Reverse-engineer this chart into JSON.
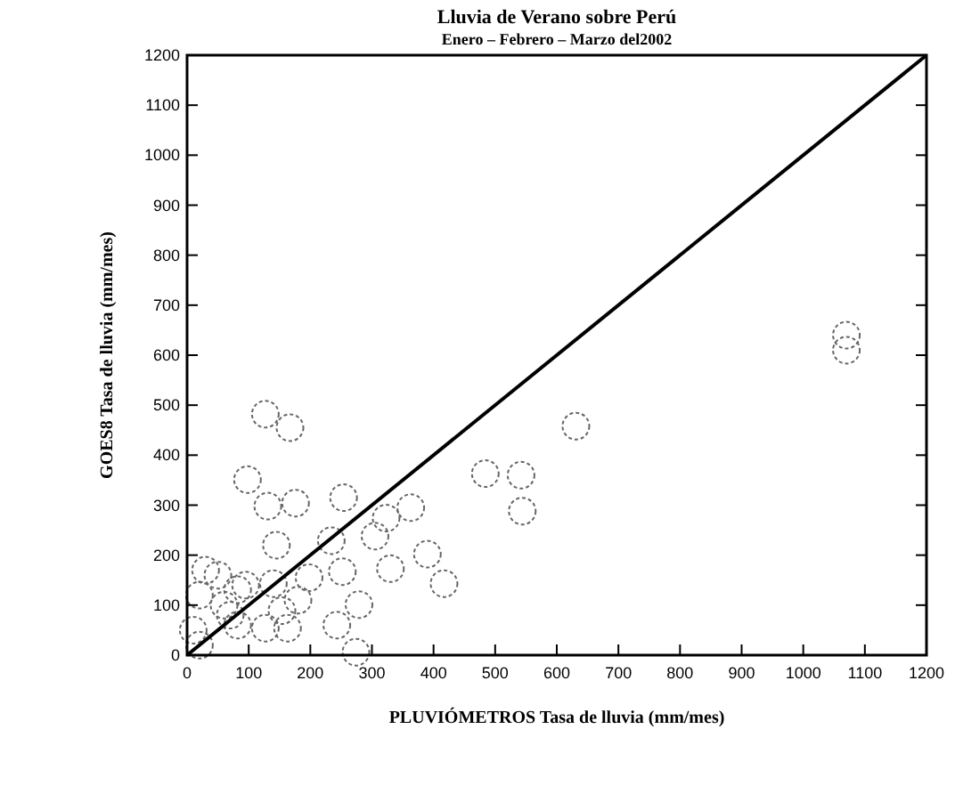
{
  "chart_data": {
    "type": "scatter",
    "title": "Lluvia de Verano sobre Perú",
    "subtitle": "Enero – Febrero – Marzo del2002",
    "xlabel": "PLUVIÓMETROS Tasa de lluvia (mm/mes)",
    "ylabel": "GOES8 Tasa de lluvia (mm/mes)",
    "xlim": [
      0,
      1200
    ],
    "ylim": [
      0,
      1200
    ],
    "xticks": [
      0,
      100,
      200,
      300,
      400,
      500,
      600,
      700,
      800,
      900,
      1000,
      1100,
      1200
    ],
    "yticks": [
      0,
      100,
      200,
      300,
      400,
      500,
      600,
      700,
      800,
      900,
      1000,
      1100,
      1200
    ],
    "grid": false,
    "marker": "circle",
    "series": [
      {
        "color": "#666666",
        "x": [
          127,
          167,
          98,
          131,
          176,
          254,
          323,
          363,
          484,
          542,
          544,
          631,
          145,
          234,
          305,
          330,
          198,
          252,
          390,
          417,
          82,
          140,
          154,
          127,
          82,
          243,
          279,
          274,
          163,
          30,
          20,
          50,
          10,
          60,
          95,
          70,
          180,
          20,
          1070,
          1070
        ],
        "values": [
          482,
          455,
          351,
          298,
          304,
          315,
          274,
          295,
          363,
          360,
          288,
          458,
          220,
          229,
          238,
          173,
          155,
          167,
          202,
          143,
          131,
          143,
          89,
          54,
          60,
          60,
          101,
          6,
          54,
          170,
          120,
          160,
          50,
          100,
          140,
          80,
          110,
          20,
          640,
          610
        ]
      },
      {
        "type": "line",
        "color": "#000000",
        "marker": "none",
        "x": [
          0,
          1200
        ],
        "values": [
          0,
          1200
        ]
      }
    ]
  }
}
